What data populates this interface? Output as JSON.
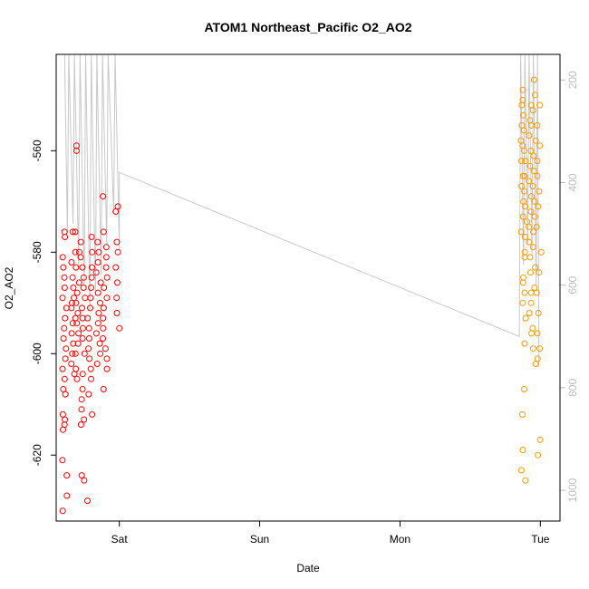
{
  "chart_data": {
    "type": "scatter",
    "title": "ATOM1 Northeast_Pacific O2_AO2",
    "xlabel": "Date",
    "ylabel": "O2_AO2",
    "x_ticks": [
      "Sat",
      "Sun",
      "Mon",
      "Tue"
    ],
    "y_ticks": [
      "-620",
      "-600",
      "-580",
      "-560"
    ],
    "y2_ticks": [
      "200",
      "400",
      "600",
      "800",
      "1000"
    ],
    "xlim_days": [
      -0.45,
      3.14
    ],
    "ylim": [
      -633,
      -541
    ],
    "y2lim": [
      150,
      1060
    ],
    "grid": false,
    "legend": "none",
    "colors": {
      "series1": "#ff0000",
      "series2": "#ff9900",
      "pressure_line": "#c8c8c8",
      "axis": "#000000",
      "right_axis": "#bdbdbd"
    },
    "series": [
      {
        "color": "#ff0000",
        "x_range_days": [
          -0.4,
          0.0
        ],
        "clusters": [
          {
            "x": -0.39,
            "points": [
              -576,
              -577,
              -581,
              -583,
              -585,
              -587,
              -589,
              -591,
              -593,
              -595,
              -597,
              -599,
              -601,
              -603,
              -605,
              -607,
              -608,
              -612,
              -613,
              -614,
              -615,
              -621,
              -624,
              -628,
              -631
            ]
          },
          {
            "x": -0.33,
            "points": [
              -576,
              -580,
              -582,
              -585,
              -587,
              -589,
              -590,
              -591,
              -593,
              -594,
              -596,
              -598,
              -600,
              -602,
              -604
            ]
          },
          {
            "x": -0.3,
            "points": [
              -559,
              -560,
              -576,
              -580,
              -583,
              -586,
              -588,
              -590,
              -592,
              -594,
              -596,
              -598,
              -600,
              -603,
              -605
            ]
          },
          {
            "x": -0.26,
            "points": [
              -578,
              -581,
              -583,
              -585,
              -587,
              -589,
              -591,
              -593,
              -595,
              -597,
              -600,
              -604,
              -607,
              -609,
              -611,
              -613,
              -614,
              -624,
              -625
            ]
          },
          {
            "x": -0.21,
            "points": [
              -577,
              -580,
              -583,
              -585,
              -587,
              -589,
              -591,
              -593,
              -595,
              -597,
              -599,
              -601,
              -603,
              -605,
              -608,
              -612,
              -629
            ]
          },
          {
            "x": -0.15,
            "points": [
              -578,
              -580,
              -582,
              -584,
              -586,
              -588,
              -590,
              -592,
              -594,
              -596,
              -598,
              -600,
              -602
            ]
          },
          {
            "x": -0.1,
            "points": [
              -569,
              -576,
              -579,
              -581,
              -583,
              -585,
              -587,
              -589,
              -591,
              -593,
              -595,
              -597,
              -599,
              -601,
              -603,
              -607
            ]
          },
          {
            "x": -0.01,
            "points": [
              -571,
              -572,
              -578,
              -580,
              -583,
              -586,
              -589,
              -592,
              -595
            ]
          }
        ]
      },
      {
        "color": "#ff9900",
        "x_range_days": [
          2.88,
          2.99
        ],
        "clusters": [
          {
            "x": 2.88,
            "points": [
              -551,
              -555,
              -558,
              -560,
              -562,
              -565,
              -567,
              -570,
              -573,
              -576,
              -580,
              -585,
              -588,
              -590,
              -593,
              -598,
              -607,
              -612,
              -619,
              -623,
              -625
            ]
          },
          {
            "x": 2.89,
            "points": [
              -548,
              -550,
              -553,
              -556,
              -559,
              -562,
              -565,
              -568,
              -571,
              -574,
              -577,
              -581,
              -586
            ]
          },
          {
            "x": 2.92,
            "points": [
              -551,
              -554,
              -557,
              -560,
              -563,
              -566,
              -569,
              -572,
              -575,
              -578,
              -581,
              -584,
              -588,
              -592,
              -596
            ]
          },
          {
            "x": 2.95,
            "points": [
              -546,
              -549,
              -552,
              -555,
              -558,
              -561,
              -564,
              -567,
              -570,
              -573,
              -576,
              -579,
              -583,
              -587,
              -590,
              -595,
              -599,
              -602
            ]
          },
          {
            "x": 2.99,
            "points": [
              -551,
              -555,
              -559,
              -562,
              -565,
              -568,
              -571,
              -575,
              -580,
              -584,
              -588,
              -592,
              -596,
              -599,
              -601,
              -617,
              -620
            ]
          }
        ]
      }
    ],
    "pressure_line": {
      "axis": "right",
      "points": [
        [
          -0.39,
          150
        ],
        [
          -0.37,
          500
        ],
        [
          -0.36,
          150
        ],
        [
          -0.33,
          480
        ],
        [
          -0.32,
          150
        ],
        [
          -0.29,
          560
        ],
        [
          -0.28,
          150
        ],
        [
          -0.25,
          600
        ],
        [
          -0.24,
          150
        ],
        [
          -0.21,
          650
        ],
        [
          -0.2,
          150
        ],
        [
          -0.17,
          620
        ],
        [
          -0.16,
          150
        ],
        [
          -0.13,
          580
        ],
        [
          -0.12,
          150
        ],
        [
          -0.09,
          520
        ],
        [
          -0.08,
          150
        ],
        [
          -0.04,
          460
        ],
        [
          -0.03,
          150
        ],
        [
          0.0,
          530
        ],
        [
          0.0,
          380
        ],
        [
          2.85,
          700
        ],
        [
          2.86,
          150
        ],
        [
          2.88,
          560
        ],
        [
          2.89,
          150
        ],
        [
          2.91,
          520
        ],
        [
          2.92,
          150
        ],
        [
          2.94,
          540
        ],
        [
          2.95,
          150
        ],
        [
          2.97,
          600
        ],
        [
          2.98,
          150
        ],
        [
          2.99,
          760
        ]
      ]
    }
  }
}
